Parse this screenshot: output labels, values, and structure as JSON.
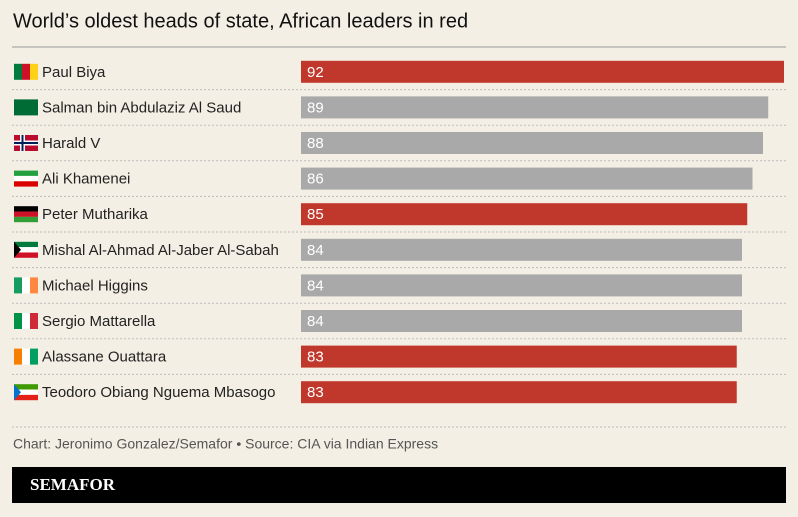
{
  "chart_data": {
    "type": "bar",
    "orientation": "horizontal",
    "title": "World’s oldest heads of state, African leaders in red",
    "categories": [
      "Paul Biya",
      "Salman bin Abdulaziz Al Saud",
      "Harald V",
      "Ali Khamenei",
      "Peter Mutharika",
      "Mishal Al-Ahmad Al-Jaber Al-Sabah",
      "Michael Higgins",
      "Sergio Mattarella",
      "Alassane Ouattara",
      "Teodoro Obiang Nguema Mbasogo"
    ],
    "values": [
      92,
      89,
      88,
      86,
      85,
      84,
      84,
      84,
      83,
      83
    ],
    "colors": [
      "#c0382b",
      "#a9a9a9",
      "#a9a9a9",
      "#a9a9a9",
      "#c0382b",
      "#a9a9a9",
      "#a9a9a9",
      "#a9a9a9",
      "#c0382b",
      "#c0382b"
    ],
    "xlim": [
      0,
      92
    ],
    "source": "Chart: Jeronimo Gonzalez/Semafor • Source: CIA via Indian Express",
    "brand": "SEMAFOR"
  }
}
